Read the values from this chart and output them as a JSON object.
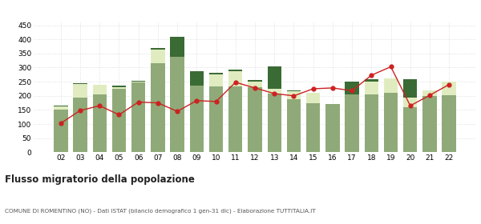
{
  "years": [
    "02",
    "03",
    "04",
    "05",
    "06",
    "07",
    "08",
    "09",
    "10",
    "11",
    "12",
    "13",
    "14",
    "15",
    "16",
    "17",
    "18",
    "19",
    "20",
    "21",
    "22"
  ],
  "iscritti_altri_comuni": [
    152,
    193,
    205,
    225,
    248,
    315,
    338,
    235,
    232,
    232,
    230,
    207,
    188,
    175,
    170,
    205,
    205,
    210,
    160,
    200,
    203
  ],
  "iscritti_estero": [
    10,
    48,
    33,
    5,
    3,
    48,
    0,
    0,
    45,
    55,
    20,
    18,
    28,
    35,
    0,
    0,
    45,
    52,
    35,
    18,
    47
  ],
  "iscritti_altri": [
    3,
    3,
    2,
    5,
    2,
    5,
    70,
    52,
    5,
    5,
    5,
    78,
    2,
    0,
    0,
    45,
    8,
    0,
    65,
    2,
    0
  ],
  "cancellati": [
    103,
    148,
    165,
    133,
    178,
    175,
    145,
    183,
    180,
    248,
    228,
    208,
    200,
    225,
    228,
    218,
    273,
    303,
    165,
    202,
    240
  ],
  "color_altri_comuni": "#8faa78",
  "color_estero": "#e0ecc0",
  "color_altri": "#3a6b35",
  "color_cancellati": "#cc2222",
  "title": "Flusso migratorio della popolazione",
  "subtitle": "COMUNE DI ROMENTINO (NO) - Dati ISTAT (bilancio demografico 1 gen-31 dic) - Elaborazione TUTTITALIA.IT",
  "ylim": [
    0,
    460
  ],
  "yticks": [
    0,
    50,
    100,
    150,
    200,
    250,
    300,
    350,
    400,
    450
  ],
  "bg_color": "#ffffff",
  "grid_color": "#d8d8d8"
}
